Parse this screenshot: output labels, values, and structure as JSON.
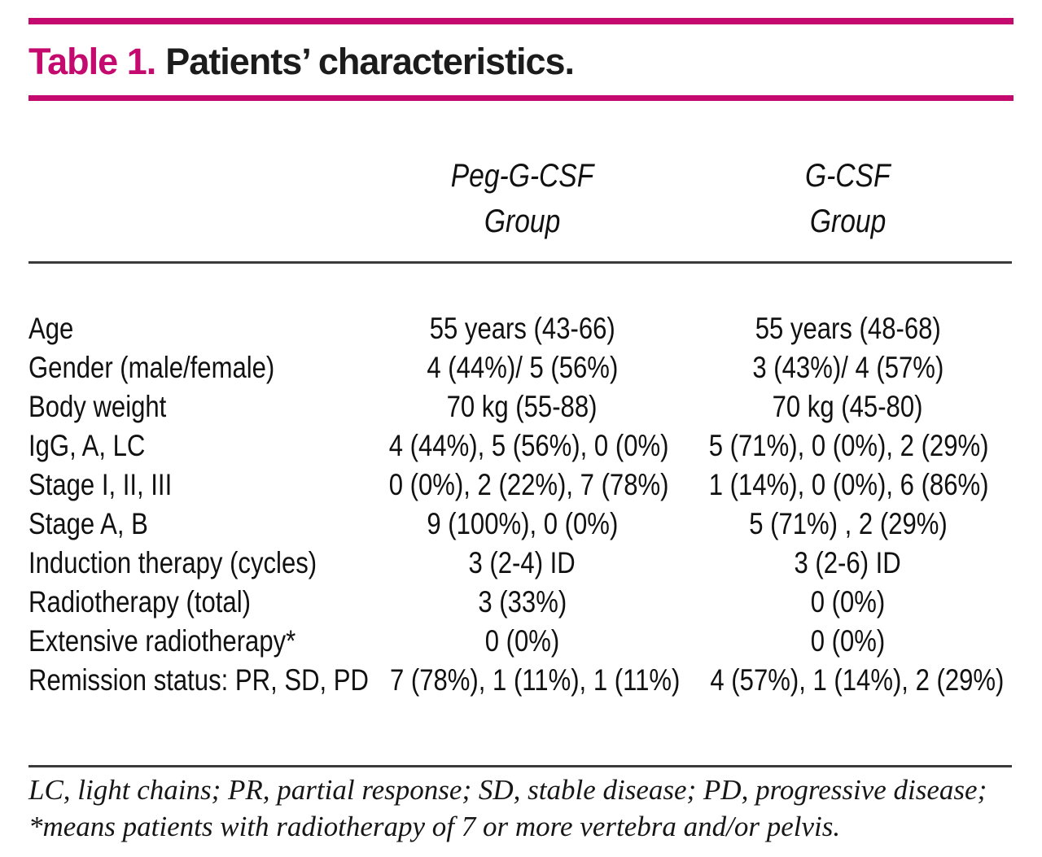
{
  "title": {
    "prefix": "Table 1.",
    "text": "Patients’ characteristics."
  },
  "table": {
    "column_headers": [
      {
        "line1": "Peg-G-CSF",
        "line2": "Group"
      },
      {
        "line1": "G-CSF",
        "line2": "Group"
      }
    ],
    "rows": [
      {
        "label": "Age",
        "peg_g_csf": "55 years (43-66)",
        "g_csf": "55 years (48-68)"
      },
      {
        "label": "Gender (male/female)",
        "peg_g_csf": "4 (44%)/ 5 (56%)",
        "g_csf": "3 (43%)/ 4 (57%)"
      },
      {
        "label": "Body weight",
        "peg_g_csf": "70 kg (55-88)",
        "g_csf": "70 kg (45-80)"
      },
      {
        "label": "IgG, A, LC",
        "peg_g_csf": "4 (44%), 5 (56%), 0 (0%)",
        "g_csf": "5 (71%), 0 (0%), 2 (29%)"
      },
      {
        "label": "Stage I, II, III",
        "peg_g_csf": "0 (0%), 2 (22%), 7 (78%)",
        "g_csf": "1 (14%), 0 (0%), 6 (86%)"
      },
      {
        "label": "Stage A, B",
        "peg_g_csf": "9 (100%), 0 (0%)",
        "g_csf": "5 (71%) , 2 (29%)"
      },
      {
        "label": "Induction therapy (cycles)",
        "peg_g_csf": "3 (2-4) ID",
        "g_csf": "3 (2-6) ID"
      },
      {
        "label": "Radiotherapy (total)",
        "peg_g_csf": "3 (33%)",
        "g_csf": "0 (0%)"
      },
      {
        "label": "Extensive radiotherapy*",
        "peg_g_csf": "0 (0%)",
        "g_csf": "0 (0%)"
      },
      {
        "label": "Remission status: PR, SD, PD",
        "peg_g_csf": "7 (78%), 1 (11%),\n1 (11%)",
        "g_csf": "4 (57%), 1 (14%),\n2 (29%)"
      }
    ]
  },
  "footnote": {
    "line1": "LC, light chains; PR, partial response; SD, stable disease; PD, progressive disease;",
    "line2": "*means patients with radiotherapy of 7 or more vertebra and/or pelvis."
  },
  "colors": {
    "accent": "#c40a6e",
    "text": "#1a1a1a",
    "rule": "#3a3a3a"
  }
}
